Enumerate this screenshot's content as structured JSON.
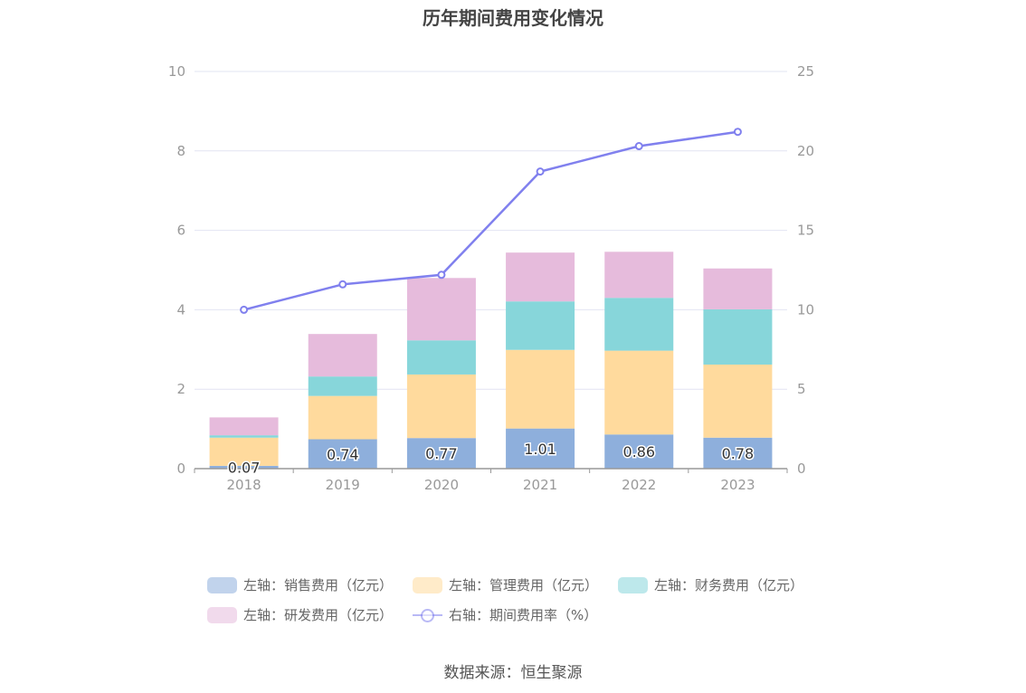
{
  "chart_data": {
    "type": "bar",
    "title": "历年期间费用变化情况",
    "categories": [
      "2018",
      "2019",
      "2020",
      "2021",
      "2022",
      "2023"
    ],
    "stacked": true,
    "series": [
      {
        "name": "左轴：销售费用（亿元）",
        "axis": "left",
        "type": "bar",
        "color": "#8eafdc",
        "values": [
          0.07,
          0.74,
          0.77,
          1.01,
          0.86,
          0.78
        ],
        "data_labels": [
          "0.07",
          "0.74",
          "0.77",
          "1.01",
          "0.86",
          "0.78"
        ]
      },
      {
        "name": "左轴：管理费用（亿元）",
        "axis": "left",
        "type": "bar",
        "color": "#ffda9d",
        "values": [
          0.71,
          1.09,
          1.6,
          1.98,
          2.11,
          1.84
        ]
      },
      {
        "name": "左轴：财务费用（亿元）",
        "axis": "left",
        "type": "bar",
        "color": "#87d6da",
        "values": [
          0.06,
          0.49,
          0.86,
          1.22,
          1.33,
          1.39
        ]
      },
      {
        "name": "左轴：研发费用（亿元）",
        "axis": "left",
        "type": "bar",
        "color": "#e6bbdc",
        "values": [
          0.45,
          1.07,
          1.57,
          1.23,
          1.16,
          1.03
        ]
      },
      {
        "name": "右轴：期间费用率（%）",
        "axis": "right",
        "type": "line",
        "color": "#8080ee",
        "values": [
          10.0,
          11.6,
          12.2,
          18.7,
          20.3,
          21.2
        ]
      }
    ],
    "left_axis": {
      "ylim": [
        0,
        10
      ],
      "ticks": [
        "0",
        "2",
        "4",
        "6",
        "8",
        "10"
      ]
    },
    "right_axis": {
      "ylim": [
        0,
        25
      ],
      "ticks": [
        "0",
        "5",
        "10",
        "15",
        "20",
        "25"
      ]
    },
    "grid": true,
    "legend_position": "bottom"
  },
  "source_note": "数据来源：恒生聚源"
}
